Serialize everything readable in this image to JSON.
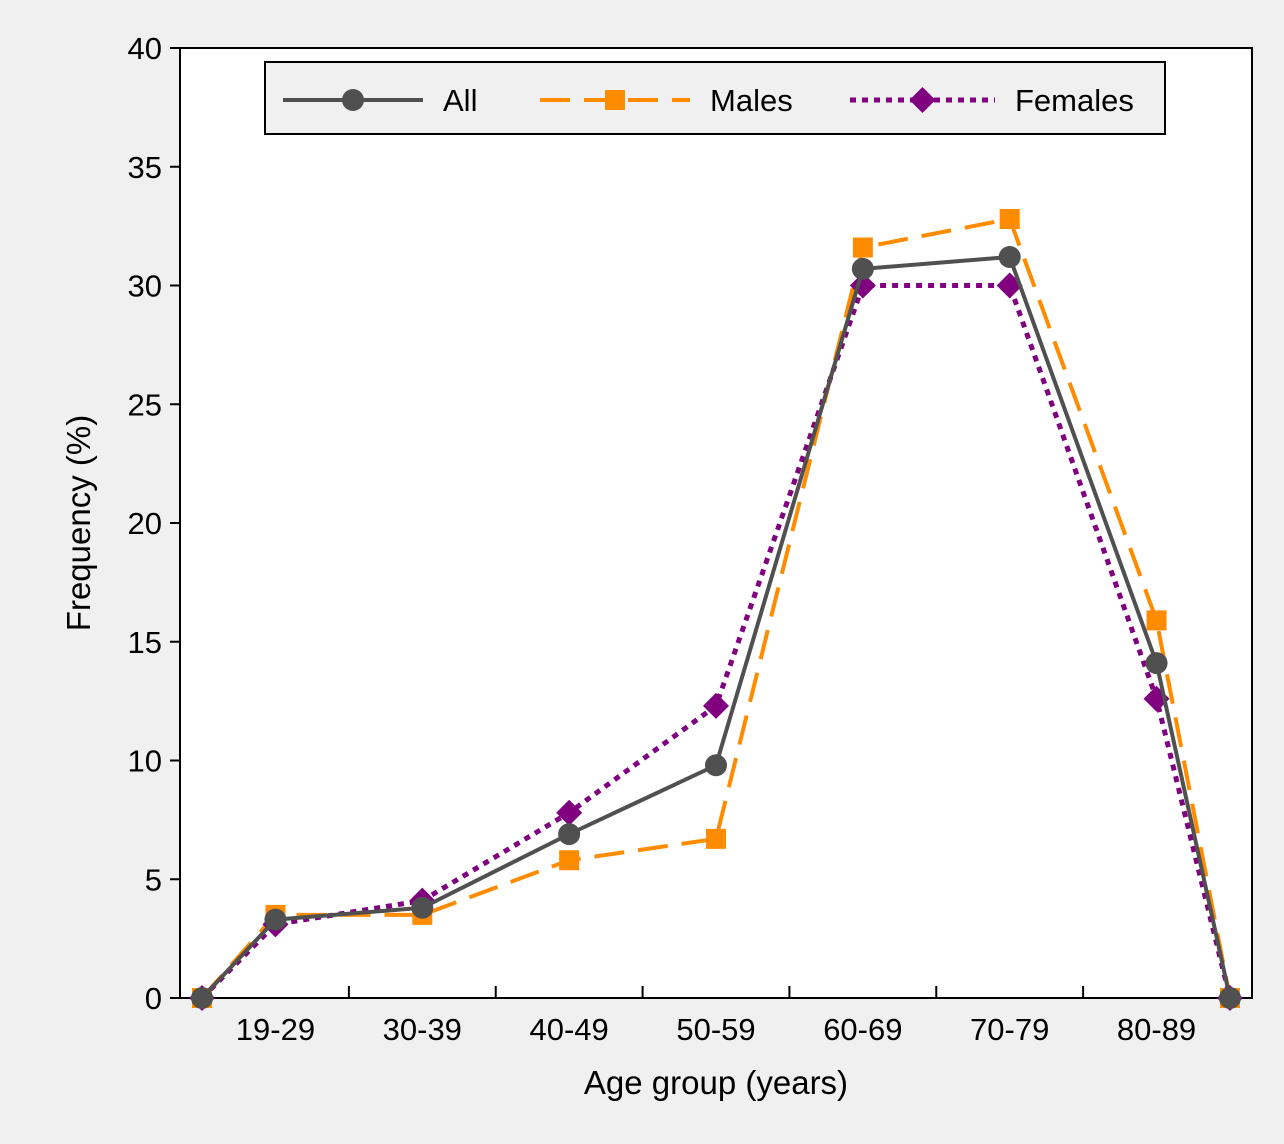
{
  "chart_data": {
    "type": "line",
    "xlabel": "Age group (years)",
    "ylabel": "Frequency (%)",
    "ylim": [
      0,
      40
    ],
    "yticks": [
      0,
      5,
      10,
      15,
      20,
      25,
      30,
      35,
      40
    ],
    "categories": [
      "19-29",
      "30-39",
      "40-49",
      "50-59",
      "60-69",
      "70-79",
      "80-89"
    ],
    "x": [
      0,
      0.5,
      1.5,
      2.5,
      3.5,
      4.5,
      5.5,
      6.5,
      7
    ],
    "series": [
      {
        "name": "All",
        "color": "#505050",
        "marker": "circle",
        "dash": "solid",
        "values": [
          0,
          3.3,
          3.8,
          6.9,
          9.8,
          30.7,
          31.2,
          14.1,
          0
        ]
      },
      {
        "name": "Males",
        "color": "#ff8c00",
        "marker": "square",
        "dash": "dashed",
        "values": [
          0,
          3.5,
          3.5,
          5.8,
          6.7,
          31.6,
          32.8,
          15.9,
          0
        ]
      },
      {
        "name": "Females",
        "color": "#800080",
        "marker": "diamond",
        "dash": "dotted",
        "values": [
          0,
          3.1,
          4.1,
          7.8,
          12.3,
          30.0,
          30.0,
          12.6,
          0
        ]
      }
    ],
    "legend_position": "top",
    "grid": false
  }
}
